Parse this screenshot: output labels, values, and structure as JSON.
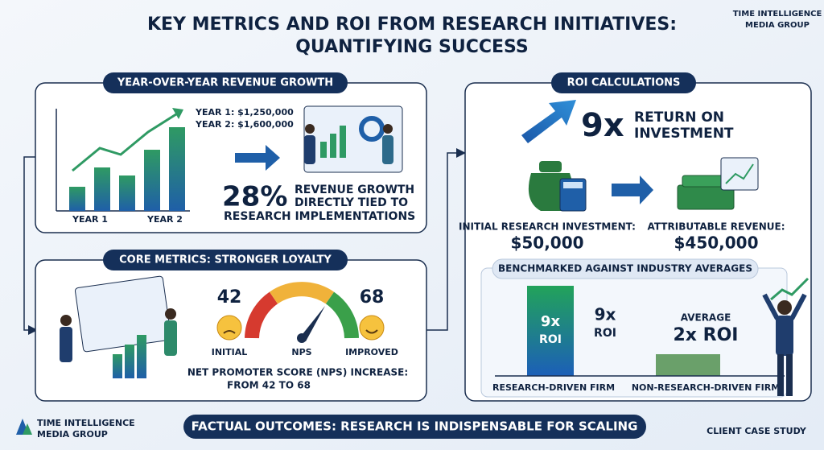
{
  "header": {
    "title_line1": "KEY METRICS AND ROI FROM RESEARCH INITIATIVES:",
    "title_line2": "QUANTIFYING SUCCESS",
    "brand_line1": "TIME INTELLIGENCE",
    "brand_line2": "MEDIA GROUP"
  },
  "revenue": {
    "heading": "YEAR-OVER-YEAR REVENUE GROWTH",
    "year1_value": "YEAR 1: $1,250,000",
    "year2_value": "YEAR 2: $1,600,000",
    "x_labels": [
      "YEAR 1",
      "YEAR 2"
    ],
    "percent": "28%",
    "caption_line1": "REVENUE GROWTH",
    "caption_line2": "DIRECTLY TIED TO",
    "caption_line3": "RESEARCH IMPLEMENTATIONS"
  },
  "loyalty": {
    "heading": "CORE METRICS: STRONGER LOYALTY",
    "initial_value": "42",
    "initial_label": "INITIAL",
    "gauge_label": "NPS",
    "improved_value": "68",
    "improved_label": "IMPROVED",
    "caption_line1": "NET PROMOTER SCORE (NPS) INCREASE:",
    "caption_line2": "FROM 42 TO 68"
  },
  "roi": {
    "heading": "ROI CALCULATIONS",
    "multiple": "9x",
    "multiple_caption_line1": "RETURN ON",
    "multiple_caption_line2": "INVESTMENT",
    "investment_label": "INITIAL RESEARCH INVESTMENT:",
    "investment_value": "$50,000",
    "revenue_label": "ATTRIBUTABLE REVENUE:",
    "revenue_value": "$450,000",
    "benchmark": {
      "heading": "BENCHMARKED AGAINST INDUSTRY AVERAGES",
      "research_bar_line1": "9x",
      "research_bar_line2": "ROI",
      "research_value_line1": "9x",
      "research_value_line2": "ROI",
      "average_label": "AVERAGE",
      "average_value": "2x ROI",
      "research_firm": "RESEARCH-DRIVEN FIRM",
      "non_research_firm": "NON-RESEARCH-DRIVEN FIRM"
    }
  },
  "footer": {
    "brand_line1": "TIME INTELLIGENCE",
    "brand_line2": "MEDIA GROUP",
    "banner": "FACTUAL OUTCOMES: RESEARCH IS INDISPENSABLE FOR SCALING",
    "tag": "CLIENT CASE STUDY"
  }
}
